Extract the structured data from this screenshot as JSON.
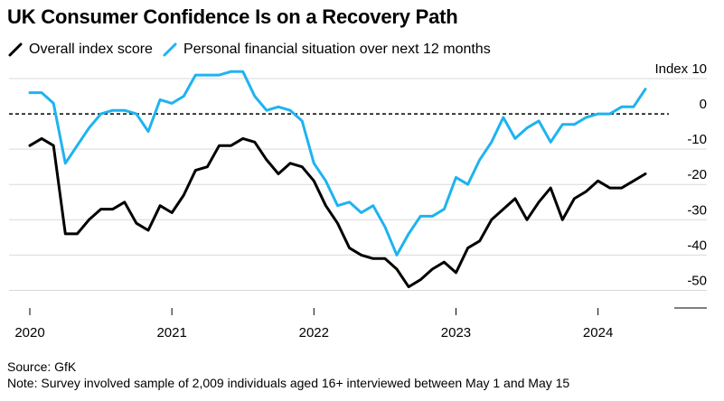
{
  "title": "UK Consumer Confidence Is on a Recovery Path",
  "source": "Source: GfK",
  "note": "Note: Survey involved sample of 2,009 individuals aged 16+ interviewed between May 1 and May 15",
  "colors": {
    "overall": "#000000",
    "personal": "#1eb3f0",
    "grid": "#d9d9d9"
  },
  "chart_data": {
    "type": "line",
    "title": "UK Consumer Confidence Is on a Recovery Path",
    "ylabel": "Index",
    "ylim": [
      -55,
      10
    ],
    "yticks": [
      10,
      0,
      -10,
      -20,
      -30,
      -40,
      -50
    ],
    "ytick_labels": [
      "Index 10",
      "0",
      "-10",
      "-20",
      "-30",
      "-40",
      "-50"
    ],
    "xticks": [
      "2020",
      "2021",
      "2022",
      "2023",
      "2024"
    ],
    "x": [
      "2020-01",
      "2020-02",
      "2020-03",
      "2020-04",
      "2020-05",
      "2020-06",
      "2020-07",
      "2020-08",
      "2020-09",
      "2020-10",
      "2020-11",
      "2020-12",
      "2021-01",
      "2021-02",
      "2021-03",
      "2021-04",
      "2021-05",
      "2021-06",
      "2021-07",
      "2021-08",
      "2021-09",
      "2021-10",
      "2021-11",
      "2021-12",
      "2022-01",
      "2022-02",
      "2022-03",
      "2022-04",
      "2022-05",
      "2022-06",
      "2022-07",
      "2022-08",
      "2022-09",
      "2022-10",
      "2022-11",
      "2022-12",
      "2023-01",
      "2023-02",
      "2023-03",
      "2023-04",
      "2023-05",
      "2023-06",
      "2023-07",
      "2023-08",
      "2023-09",
      "2023-10",
      "2023-11",
      "2023-12",
      "2024-01",
      "2024-02",
      "2024-03",
      "2024-04",
      "2024-05"
    ],
    "grid": true,
    "reference_line": {
      "y": 0,
      "style": "dashed"
    },
    "legend_position": "top-left",
    "series": [
      {
        "name": "Overall index score",
        "values": [
          -9,
          -7,
          -9,
          -34,
          -34,
          -30,
          -27,
          -27,
          -25,
          -31,
          -33,
          -26,
          -28,
          -23,
          -16,
          -15,
          -9,
          -9,
          -7,
          -8,
          -13,
          -17,
          -14,
          -15,
          -19,
          -26,
          -31,
          -38,
          -40,
          -41,
          -41,
          -44,
          -49,
          -47,
          -44,
          -42,
          -45,
          -38,
          -36,
          -30,
          -27,
          -24,
          -30,
          -25,
          -21,
          -30,
          -24,
          -22,
          -19,
          -21,
          -21,
          -19,
          -17
        ]
      },
      {
        "name": "Personal financial situation over next 12 months",
        "values": [
          6,
          6,
          3,
          -14,
          -9,
          -4,
          0,
          1,
          1,
          0,
          -5,
          4,
          3,
          5,
          11,
          11,
          11,
          12,
          12,
          5,
          1,
          2,
          1,
          -2,
          -14,
          -19,
          -26,
          -25,
          -28,
          -26,
          -32,
          -40,
          -34,
          -29,
          -29,
          -27,
          -18,
          -20,
          -13,
          -8,
          -1,
          -7,
          -4,
          -2,
          -8,
          -3,
          -3,
          -1,
          0,
          0,
          2,
          2,
          7
        ]
      }
    ]
  }
}
